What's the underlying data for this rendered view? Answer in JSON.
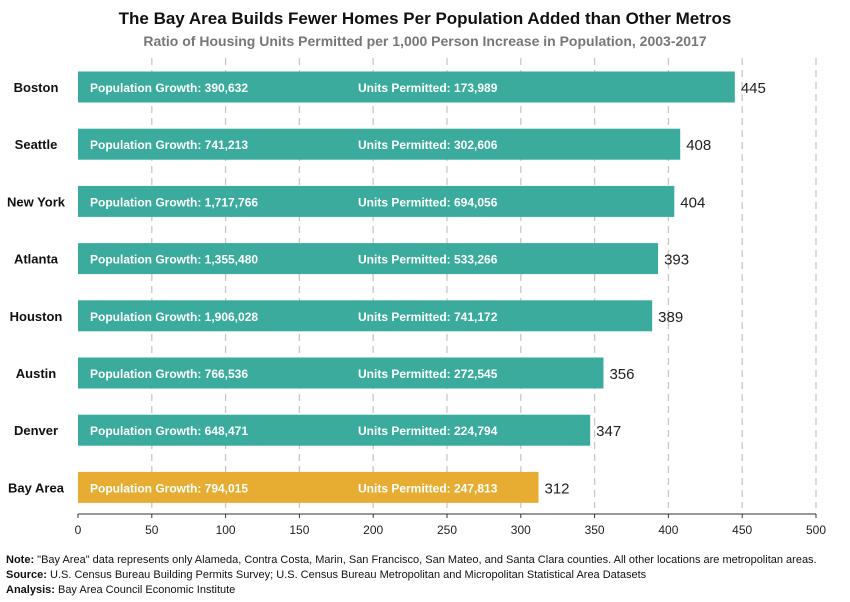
{
  "title": "The Bay Area Builds Fewer Homes Per Population Added than Other Metros",
  "subtitle": "Ratio of Housing Units Permitted per 1,000 Person Increase in Population, 2003-2017",
  "chart_data": {
    "type": "bar",
    "orientation": "horizontal",
    "categories": [
      "Boston",
      "Seattle",
      "New York",
      "Atlanta",
      "Houston",
      "Austin",
      "Denver",
      "Bay Area"
    ],
    "values": [
      445,
      408,
      404,
      393,
      389,
      356,
      347,
      312
    ],
    "population_growth_labels": [
      "Population Growth: 390,632",
      "Population Growth: 741,213",
      "Population Growth: 1,717,766",
      "Population Growth: 1,355,480",
      "Population Growth: 1,906,028",
      "Population Growth: 766,536",
      "Population Growth: 648,471",
      "Population Growth: 794,015"
    ],
    "units_permitted_labels": [
      "Units Permitted: 173,989",
      "Units Permitted: 302,606",
      "Units Permitted: 694,056",
      "Units Permitted: 533,266",
      "Units Permitted: 741,172",
      "Units Permitted: 272,545",
      "Units Permitted: 224,794",
      "Units Permitted: 247,813"
    ],
    "xlim": [
      0,
      500
    ],
    "xticks": [
      0,
      50,
      100,
      150,
      200,
      250,
      300,
      350,
      400,
      450,
      500
    ],
    "grid": "vertical dashed",
    "colors": {
      "default": "#3aab9c",
      "highlight": "#e7ad33",
      "highlight_category": "Bay Area",
      "grid": "#c8c8c8"
    }
  },
  "footer": {
    "note_label": "Note:",
    "note_text": " \"Bay Area\" data represents only Alameda, Contra Costa, Marin, San Francisco, San Mateo, and Santa Clara counties. All other locations are metropolitan areas.",
    "source_label": "Source:",
    "source_text": " U.S. Census Bureau Building Permits Survey; U.S. Census Bureau Metropolitan and Micropolitan Statistical Area Datasets",
    "analysis_label": "Analysis:",
    "analysis_text": " Bay Area Council Economic Institute"
  }
}
